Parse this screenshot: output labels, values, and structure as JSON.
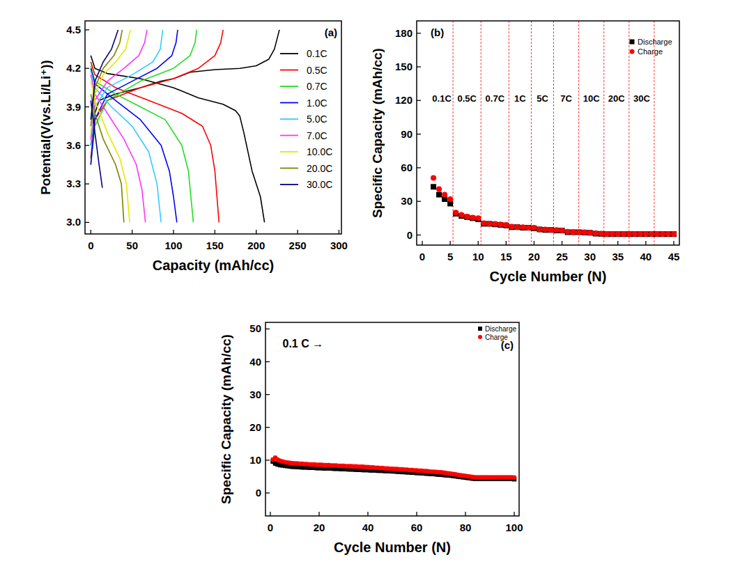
{
  "chart_data": [
    {
      "type": "line",
      "title": "(a)",
      "x_label": "Capacity (mAh/cc)",
      "y_label": "Potential(V(vs.Li/Li⁺))",
      "xlim": [
        -7,
        303
      ],
      "ylim": [
        2.91,
        4.57
      ],
      "xticks": [
        0,
        50,
        100,
        150,
        200,
        250,
        300
      ],
      "yticks": [
        {
          "value": 3,
          "label": "3.0"
        },
        3.3,
        3.6,
        3.9,
        4.2,
        4.5
      ],
      "legend": "upper right",
      "series": [
        {
          "name": "0.1C",
          "color": "#000000",
          "x": [
            0,
            5,
            10,
            30,
            60,
            85,
            100,
            120,
            150,
            180,
            200,
            215,
            222,
            228,
            null,
            0,
            5,
            20,
            60,
            100,
            130,
            160,
            175,
            180,
            185,
            195,
            205,
            210
          ],
          "values": [
            3.6,
            3.85,
            3.95,
            4.0,
            4.05,
            4.1,
            4.12,
            4.17,
            4.19,
            4.2,
            4.22,
            4.27,
            4.35,
            4.5,
            null,
            4.3,
            4.2,
            4.16,
            4.12,
            4.05,
            3.97,
            3.92,
            3.87,
            3.83,
            3.7,
            3.4,
            3.2,
            3.0
          ]
        },
        {
          "name": "0.5C",
          "color": "#ff0000",
          "x": [
            0,
            5,
            20,
            60,
            100,
            130,
            150,
            157,
            160,
            null,
            0,
            5,
            30,
            70,
            110,
            135,
            145,
            150,
            155
          ],
          "values": [
            3.5,
            3.8,
            3.95,
            4.05,
            4.12,
            4.2,
            4.3,
            4.4,
            4.5,
            null,
            4.25,
            4.15,
            4.05,
            3.95,
            3.85,
            3.75,
            3.6,
            3.4,
            3.0
          ]
        },
        {
          "name": "0.7C",
          "color": "#22dd22",
          "x": [
            0,
            5,
            20,
            60,
            100,
            120,
            126,
            128,
            null,
            0,
            5,
            30,
            60,
            90,
            110,
            118,
            124
          ],
          "values": [
            3.45,
            3.75,
            3.95,
            4.1,
            4.2,
            4.3,
            4.4,
            4.5,
            null,
            4.22,
            4.1,
            4.0,
            3.9,
            3.8,
            3.6,
            3.4,
            3.0
          ]
        },
        {
          "name": "1.0C",
          "color": "#0000ff",
          "x": [
            0,
            5,
            20,
            50,
            80,
            98,
            103,
            105,
            null,
            0,
            5,
            30,
            60,
            85,
            95,
            100,
            104
          ],
          "values": [
            3.45,
            3.8,
            4.0,
            4.1,
            4.2,
            4.3,
            4.4,
            4.5,
            null,
            4.2,
            4.08,
            3.95,
            3.8,
            3.6,
            3.4,
            3.2,
            3.0
          ]
        },
        {
          "name": "5.0C",
          "color": "#33ccff",
          "x": [
            0,
            5,
            20,
            50,
            75,
            84,
            87,
            null,
            0,
            5,
            25,
            50,
            70,
            80,
            85
          ],
          "values": [
            3.6,
            3.9,
            4.05,
            4.15,
            4.25,
            4.35,
            4.5,
            null,
            4.18,
            4.05,
            3.9,
            3.75,
            3.55,
            3.3,
            3.0
          ]
        },
        {
          "name": "7.0C",
          "color": "#ff33ff",
          "x": [
            0,
            5,
            20,
            40,
            58,
            65,
            68,
            null,
            0,
            5,
            20,
            40,
            55,
            62,
            66
          ],
          "values": [
            3.65,
            3.95,
            4.1,
            4.2,
            4.3,
            4.4,
            4.5,
            null,
            4.15,
            4.0,
            3.85,
            3.65,
            3.45,
            3.25,
            3.0
          ]
        },
        {
          "name": "10.0C",
          "color": "#e8e800",
          "x": [
            0,
            5,
            15,
            30,
            42,
            48,
            null,
            0,
            5,
            20,
            35,
            43,
            47
          ],
          "values": [
            3.7,
            4.0,
            4.15,
            4.25,
            4.35,
            4.5,
            null,
            4.1,
            3.95,
            3.7,
            3.5,
            3.3,
            3.0
          ]
        },
        {
          "name": "20.0C",
          "color": "#808000",
          "x": [
            0,
            5,
            15,
            28,
            35,
            38,
            null,
            0,
            5,
            15,
            30,
            37,
            40
          ],
          "values": [
            3.75,
            4.05,
            4.2,
            4.3,
            4.4,
            4.5,
            null,
            4.0,
            3.85,
            3.65,
            3.45,
            3.3,
            3.0
          ]
        },
        {
          "name": "30.0C",
          "color": "#000080",
          "x": [
            0,
            5,
            15,
            25,
            33,
            null,
            0,
            5,
            10,
            14
          ],
          "values": [
            3.8,
            4.1,
            4.25,
            4.35,
            4.5,
            null,
            3.95,
            3.7,
            3.45,
            3.27
          ]
        }
      ]
    },
    {
      "type": "scatter",
      "title": "(b)",
      "x_label": "Cycle Number (N)",
      "y_label": "Specific Capacity (mAh/cc)",
      "xlim": [
        -1,
        46
      ],
      "ylim": [
        -9,
        191
      ],
      "xticks": [
        0,
        5,
        10,
        15,
        20,
        25,
        30,
        35,
        40,
        45
      ],
      "yticks": [
        0,
        30,
        60,
        90,
        120,
        150,
        180
      ],
      "legend": "upper right",
      "x": [
        2,
        3,
        4,
        5,
        6,
        7,
        8,
        9,
        10,
        11,
        12,
        13,
        14,
        15,
        16,
        17,
        18,
        19,
        20,
        21,
        22,
        23,
        24,
        25,
        26,
        27,
        28,
        29,
        30,
        31,
        32,
        33,
        34,
        35,
        36,
        37,
        38,
        39,
        40,
        41,
        42,
        43,
        44,
        45
      ],
      "series": [
        {
          "name": "Discharge",
          "color": "#000000",
          "marker": "square",
          "values": [
            43,
            36,
            32,
            28,
            19,
            17,
            16,
            15,
            14,
            10,
            10,
            9.5,
            9,
            8.5,
            7,
            7,
            6.5,
            6.5,
            6,
            5,
            4.5,
            4.5,
            4,
            4,
            2.5,
            2.5,
            2.5,
            2.2,
            2,
            1.2,
            1,
            0.8,
            0.8,
            0.8,
            0.8,
            0.8,
            0.8,
            0.8,
            0.8,
            0.8,
            0.8,
            0.8,
            0.8,
            0.8
          ]
        },
        {
          "name": "Charge",
          "color": "#ff0000",
          "marker": "circle",
          "values": [
            51,
            41,
            36,
            32,
            20,
            18,
            16.5,
            15.5,
            15,
            10.5,
            10,
            10,
            9.5,
            9,
            7.5,
            7,
            7,
            6.5,
            6.5,
            5,
            5,
            4.5,
            4.5,
            4,
            3,
            2.5,
            2.5,
            2.5,
            2,
            1.5,
            1.2,
            1,
            1,
            1,
            1,
            1,
            1,
            1,
            1,
            1,
            1,
            1,
            1,
            1
          ]
        }
      ],
      "dividers": [
        5.5,
        10.5,
        15.5,
        19.5,
        23.5,
        28,
        32.5,
        37,
        41.5
      ],
      "region_labels": [
        {
          "text": "0.1C",
          "x": 3.5,
          "y": 122
        },
        {
          "text": "0.5C",
          "x": 8,
          "y": 122
        },
        {
          "text": "0.7C",
          "x": 13,
          "y": 122
        },
        {
          "text": "1C",
          "x": 17.5,
          "y": 122
        },
        {
          "text": "5C",
          "x": 21.5,
          "y": 122
        },
        {
          "text": "7C",
          "x": 25.75,
          "y": 122
        },
        {
          "text": "10C",
          "x": 30.25,
          "y": 122
        },
        {
          "text": "20C",
          "x": 34.75,
          "y": 122
        },
        {
          "text": "30C",
          "x": 39.25,
          "y": 122
        }
      ]
    },
    {
      "type": "scatter",
      "title": "(c)",
      "x_label": "Cycle Number (N)",
      "y_label": "Specific Capacity (mAh/cc)",
      "xlim": [
        -2,
        102
      ],
      "ylim": [
        -7,
        52
      ],
      "xticks": [
        0,
        20,
        40,
        60,
        80,
        100
      ],
      "yticks": [
        0,
        10,
        20,
        30,
        40,
        50
      ],
      "legend": "upper right",
      "annotations": [
        {
          "text": "0.1 C →",
          "x": 5,
          "y": 45.7
        }
      ],
      "x": [
        1,
        2,
        3,
        4,
        5,
        6,
        7,
        8,
        9,
        10,
        11,
        12,
        13,
        14,
        15,
        16,
        17,
        18,
        19,
        20,
        21,
        22,
        23,
        24,
        25,
        26,
        27,
        28,
        29,
        30,
        31,
        32,
        33,
        34,
        35,
        36,
        37,
        38,
        39,
        40,
        41,
        42,
        43,
        44,
        45,
        46,
        47,
        48,
        49,
        50,
        51,
        52,
        53,
        54,
        55,
        56,
        57,
        58,
        59,
        60,
        61,
        62,
        63,
        64,
        65,
        66,
        67,
        68,
        69,
        70,
        71,
        72,
        73,
        74,
        75,
        76,
        77,
        78,
        79,
        80,
        81,
        82,
        83,
        84,
        85,
        86,
        87,
        88,
        89,
        90,
        91,
        92,
        93,
        94,
        95,
        96,
        97,
        98,
        99,
        100
      ],
      "series": [
        {
          "name": "Discharge",
          "color": "#000000",
          "marker": "square",
          "values": [
            9.6,
            9.0,
            8.7,
            8.5,
            8.4,
            8.3,
            8.2,
            8.1,
            8.0,
            8.0,
            7.9,
            7.9,
            7.8,
            7.8,
            7.8,
            7.7,
            7.7,
            7.7,
            7.6,
            7.6,
            7.6,
            7.5,
            7.5,
            7.5,
            7.5,
            7.4,
            7.4,
            7.4,
            7.3,
            7.3,
            7.3,
            7.2,
            7.2,
            7.2,
            7.1,
            7.1,
            7.1,
            7.0,
            7.0,
            7.0,
            6.9,
            6.9,
            6.9,
            6.8,
            6.8,
            6.8,
            6.7,
            6.7,
            6.7,
            6.6,
            6.6,
            6.5,
            6.5,
            6.4,
            6.4,
            6.3,
            6.3,
            6.2,
            6.2,
            6.1,
            6.1,
            6.0,
            6.0,
            5.9,
            5.9,
            5.8,
            5.8,
            5.7,
            5.6,
            5.6,
            5.5,
            5.4,
            5.4,
            5.3,
            5.2,
            5.1,
            5.0,
            4.9,
            4.8,
            4.7,
            4.6,
            4.5,
            4.4,
            4.3,
            4.3,
            4.3,
            4.3,
            4.3,
            4.3,
            4.3,
            4.3,
            4.3,
            4.3,
            4.3,
            4.3,
            4.3,
            4.3,
            4.3,
            4.3,
            4.2
          ]
        },
        {
          "name": "Charge",
          "color": "#ff0000",
          "marker": "circle",
          "values": [
            10.2,
            10.8,
            10.2,
            9.8,
            9.6,
            9.4,
            9.3,
            9.2,
            9.1,
            9.0,
            9.0,
            8.9,
            8.9,
            8.8,
            8.8,
            8.7,
            8.7,
            8.7,
            8.6,
            8.6,
            8.6,
            8.5,
            8.5,
            8.5,
            8.4,
            8.4,
            8.4,
            8.3,
            8.3,
            8.3,
            8.2,
            8.2,
            8.2,
            8.1,
            8.1,
            8.0,
            8.0,
            8.0,
            7.9,
            7.9,
            7.8,
            7.8,
            7.7,
            7.7,
            7.6,
            7.6,
            7.5,
            7.5,
            7.4,
            7.4,
            7.3,
            7.3,
            7.2,
            7.2,
            7.1,
            7.1,
            7.0,
            7.0,
            6.9,
            6.9,
            6.8,
            6.8,
            6.7,
            6.7,
            6.6,
            6.5,
            6.5,
            6.4,
            6.3,
            6.3,
            6.2,
            6.1,
            6.0,
            5.9,
            5.8,
            5.7,
            5.5,
            5.4,
            5.3,
            5.2,
            5.1,
            5.0,
            4.9,
            4.8,
            4.8,
            4.8,
            4.8,
            4.8,
            4.8,
            4.8,
            4.8,
            4.8,
            4.8,
            4.8,
            4.8,
            4.8,
            4.8,
            4.8,
            4.8,
            4.7
          ]
        }
      ]
    }
  ]
}
